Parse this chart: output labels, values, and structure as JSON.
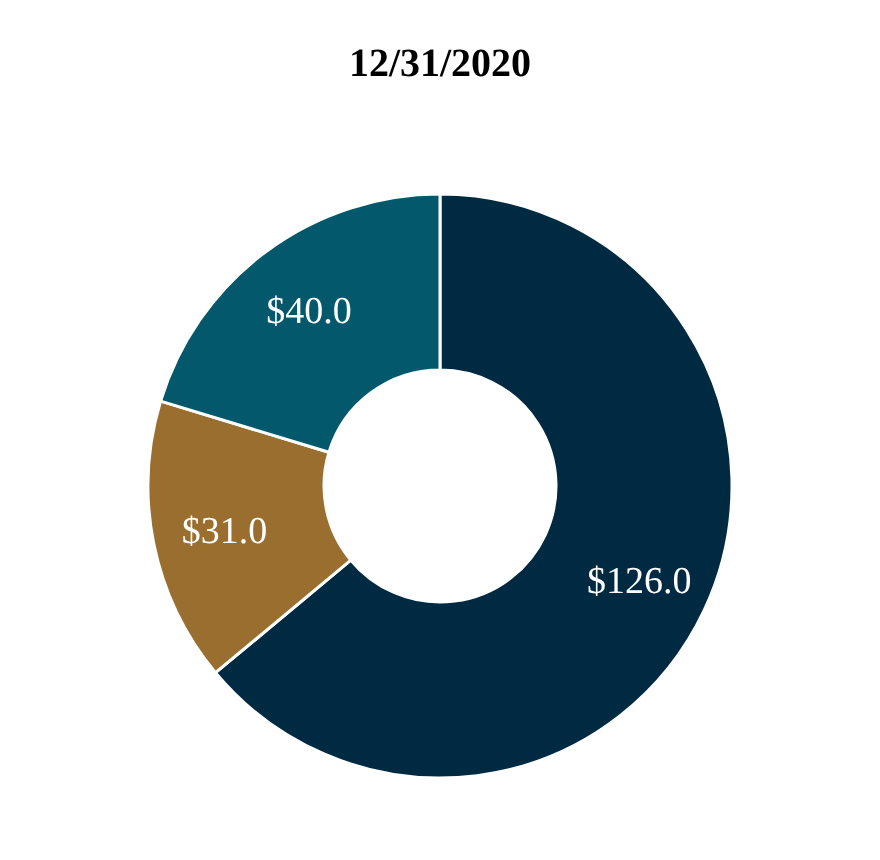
{
  "chart_data": {
    "type": "donut",
    "title": "12/31/2020",
    "categories": [
      null,
      null,
      null
    ],
    "values": [
      126,
      31,
      40
    ],
    "colors": [
      "#002a42",
      "#9a6e2f",
      "#03586b"
    ],
    "value_labels": [
      "$126.0",
      "$31.0",
      "$40.0"
    ]
  }
}
